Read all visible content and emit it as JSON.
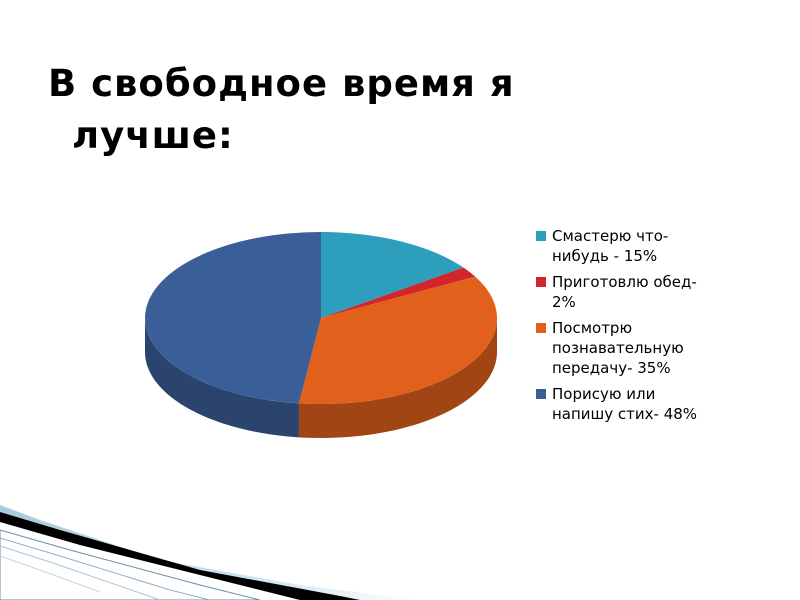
{
  "slide": {
    "title_line1": "В свободное время я",
    "title_line2": "лучше:"
  },
  "chart_data": {
    "type": "pie",
    "style": "3d",
    "categories": [
      "Смастерю что-нибудь - 15%",
      "Приготовлю обед- 2%",
      "Посмотрю познавательную передачу- 35%",
      "Порисую или напишу стих- 48%"
    ],
    "values": [
      15,
      2,
      35,
      48
    ],
    "colors": [
      "#2d9fbd",
      "#d0262c",
      "#e0601c",
      "#3a5f98"
    ],
    "legend": {
      "placement": "right",
      "items": [
        {
          "line1": "Смастерю что-",
          "line2": "нибудь - 15%"
        },
        {
          "line1": "Приготовлю обед-",
          "line2": "2%"
        },
        {
          "line1": "Посмотрю",
          "line2": "познавательную",
          "line3": "передачу- 35%"
        },
        {
          "line1": "Порисую или",
          "line2": "напишу стих- 48%"
        }
      ]
    }
  }
}
